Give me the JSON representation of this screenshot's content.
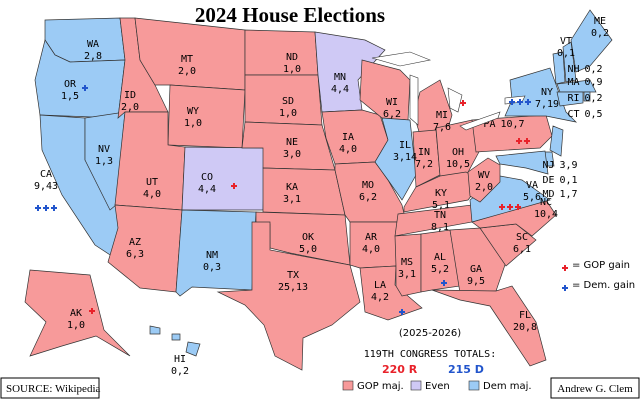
{
  "title": "2024 House Elections",
  "colors": {
    "gop": "#f79a9a",
    "dem": "#9ccbf5",
    "even": "#cfc9f5",
    "gop_mark": "#e8222a",
    "dem_mark": "#2255cc"
  },
  "states": [
    {
      "abbr": "WA",
      "seats": "2,8",
      "control": "dem"
    },
    {
      "abbr": "OR",
      "seats": "1,5",
      "control": "dem",
      "dem_gains": 1
    },
    {
      "abbr": "CA",
      "seats": "9,43",
      "control": "dem",
      "dem_gains": 3
    },
    {
      "abbr": "NV",
      "seats": "1,3",
      "control": "dem"
    },
    {
      "abbr": "ID",
      "seats": "2,0",
      "control": "gop"
    },
    {
      "abbr": "MT",
      "seats": "2,0",
      "control": "gop"
    },
    {
      "abbr": "WY",
      "seats": "1,0",
      "control": "gop"
    },
    {
      "abbr": "UT",
      "seats": "4,0",
      "control": "gop"
    },
    {
      "abbr": "AZ",
      "seats": "6,3",
      "control": "gop"
    },
    {
      "abbr": "CO",
      "seats": "4,4",
      "control": "even",
      "gop_gains": 1
    },
    {
      "abbr": "NM",
      "seats": "0,3",
      "control": "dem"
    },
    {
      "abbr": "ND",
      "seats": "1,0",
      "control": "gop"
    },
    {
      "abbr": "SD",
      "seats": "1,0",
      "control": "gop"
    },
    {
      "abbr": "NE",
      "seats": "3,0",
      "control": "gop"
    },
    {
      "abbr": "KA",
      "seats": "3,1",
      "control": "gop"
    },
    {
      "abbr": "OK",
      "seats": "5,0",
      "control": "gop"
    },
    {
      "abbr": "TX",
      "seats": "25,13",
      "control": "gop"
    },
    {
      "abbr": "MN",
      "seats": "4,4",
      "control": "even"
    },
    {
      "abbr": "IA",
      "seats": "4,0",
      "control": "gop"
    },
    {
      "abbr": "MO",
      "seats": "6,2",
      "control": "gop"
    },
    {
      "abbr": "AR",
      "seats": "4,0",
      "control": "gop"
    },
    {
      "abbr": "LA",
      "seats": "4,2",
      "control": "gop",
      "dem_gains": 1
    },
    {
      "abbr": "WI",
      "seats": "6,2",
      "control": "gop"
    },
    {
      "abbr": "IL",
      "seats": "3,14",
      "control": "dem"
    },
    {
      "abbr": "MI",
      "seats": "7,6",
      "control": "gop",
      "gop_gains": 1
    },
    {
      "abbr": "IN",
      "seats": "7,2",
      "control": "gop"
    },
    {
      "abbr": "OH",
      "seats": "10,5",
      "control": "gop"
    },
    {
      "abbr": "KY",
      "seats": "5,1",
      "control": "gop"
    },
    {
      "abbr": "TN",
      "seats": "8,1",
      "control": "gop"
    },
    {
      "abbr": "MS",
      "seats": "3,1",
      "control": "gop"
    },
    {
      "abbr": "AL",
      "seats": "5,2",
      "control": "gop",
      "dem_gains": 1
    },
    {
      "abbr": "GA",
      "seats": "9,5",
      "control": "gop"
    },
    {
      "abbr": "FL",
      "seats": "20,8",
      "control": "gop"
    },
    {
      "abbr": "SC",
      "seats": "6,1",
      "control": "gop"
    },
    {
      "abbr": "NC",
      "seats": "10,4",
      "control": "gop",
      "gop_gains": 3
    },
    {
      "abbr": "VA",
      "seats": "5,6",
      "control": "dem"
    },
    {
      "abbr": "WV",
      "seats": "2,0",
      "control": "gop"
    },
    {
      "abbr": "PA",
      "seats": "10,7",
      "control": "gop",
      "gop_gains": 2
    },
    {
      "abbr": "NY",
      "seats": "7,19",
      "control": "dem",
      "dem_gains": 3
    },
    {
      "abbr": "NJ",
      "seats": "3,9",
      "control": "dem"
    },
    {
      "abbr": "DE",
      "seats": "0,1",
      "control": "dem"
    },
    {
      "abbr": "MD",
      "seats": "1,7",
      "control": "dem"
    },
    {
      "abbr": "VT",
      "seats": "0,1",
      "control": "dem"
    },
    {
      "abbr": "NH",
      "seats": "0,2",
      "control": "dem"
    },
    {
      "abbr": "ME",
      "seats": "0,2",
      "control": "dem"
    },
    {
      "abbr": "MA",
      "seats": "0,9",
      "control": "dem"
    },
    {
      "abbr": "RI",
      "seats": "0,2",
      "control": "dem"
    },
    {
      "abbr": "CT",
      "seats": "0,5",
      "control": "dem"
    },
    {
      "abbr": "AK",
      "seats": "1,0",
      "control": "gop",
      "gop_gains": 1
    },
    {
      "abbr": "HI",
      "seats": "0,2",
      "control": "dem"
    }
  ],
  "legend": {
    "gop_gain": "= GOP gain",
    "dem_gain": "= Dem. gain",
    "gop_maj": "GOP maj.",
    "even": "Even",
    "dem_maj": "Dem maj."
  },
  "totals": {
    "period": "(2025-2026)",
    "label": "119TH CONGRESS TOTALS:",
    "gop": "220 R",
    "dem": "215 D"
  },
  "source": "SOURCE:  Wikipedia",
  "author": "Andrew G. Clem"
}
